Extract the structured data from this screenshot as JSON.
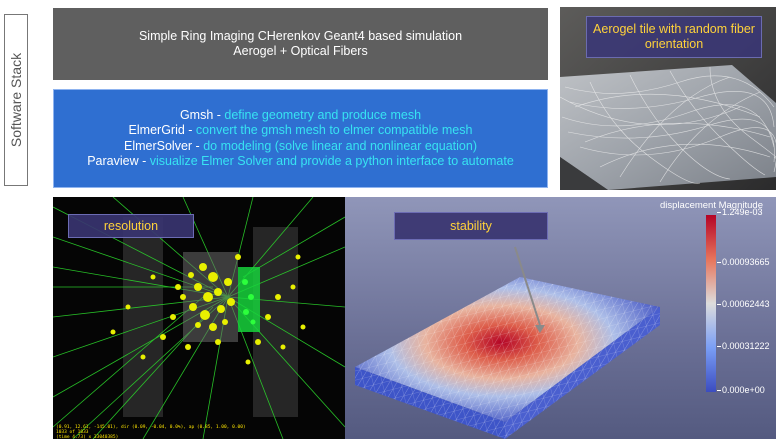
{
  "side_label": "Software Stack",
  "title_box": {
    "line1": "Simple Ring Imaging CHerenkov Geant4 based simulation",
    "line2": "Aerogel + Optical Fibers"
  },
  "tools": [
    {
      "name": "Gmsh",
      "sep": " - ",
      "desc": "define geometry and produce mesh"
    },
    {
      "name": "ElmerGrid",
      "sep": " - ",
      "desc": "convert the gmsh mesh to elmer compatible mesh"
    },
    {
      "name": "ElmerSolver",
      "sep": " - ",
      "desc": "do modeling (solve linear and nonlinear equation)"
    },
    {
      "name": "Paraview",
      "sep": " - ",
      "desc": "visualize Elmer Solver and provide a python interface to automate"
    }
  ],
  "photo_caption": "Aerogel tile with random fiber orientation",
  "resolution_label": "resolution",
  "stability_label": "stability",
  "colorbar": {
    "title": "displacement Magnitude",
    "ticks": [
      "1.249e-03",
      "0.00093665",
      "0.00062443",
      "0.00031222",
      "0.000e+00"
    ],
    "colors": {
      "high": "#b40426",
      "mid": "#dcdcdc",
      "low": "#3b4cc0"
    }
  },
  "console": {
    "line1": "(0.91, 12.61, -145.01), dir (0.09, -0.04, 0.0%), ap (0.85, 1.00, 0.00)",
    "line2": "1033 of 1033",
    "line3": "(time 4.73) x 33040385)"
  },
  "colors": {
    "title_bg": "#5f5f5f",
    "tools_bg": "#2f6fd1",
    "desc_text": "#37e3f2",
    "tag_text": "#ffd23a"
  }
}
